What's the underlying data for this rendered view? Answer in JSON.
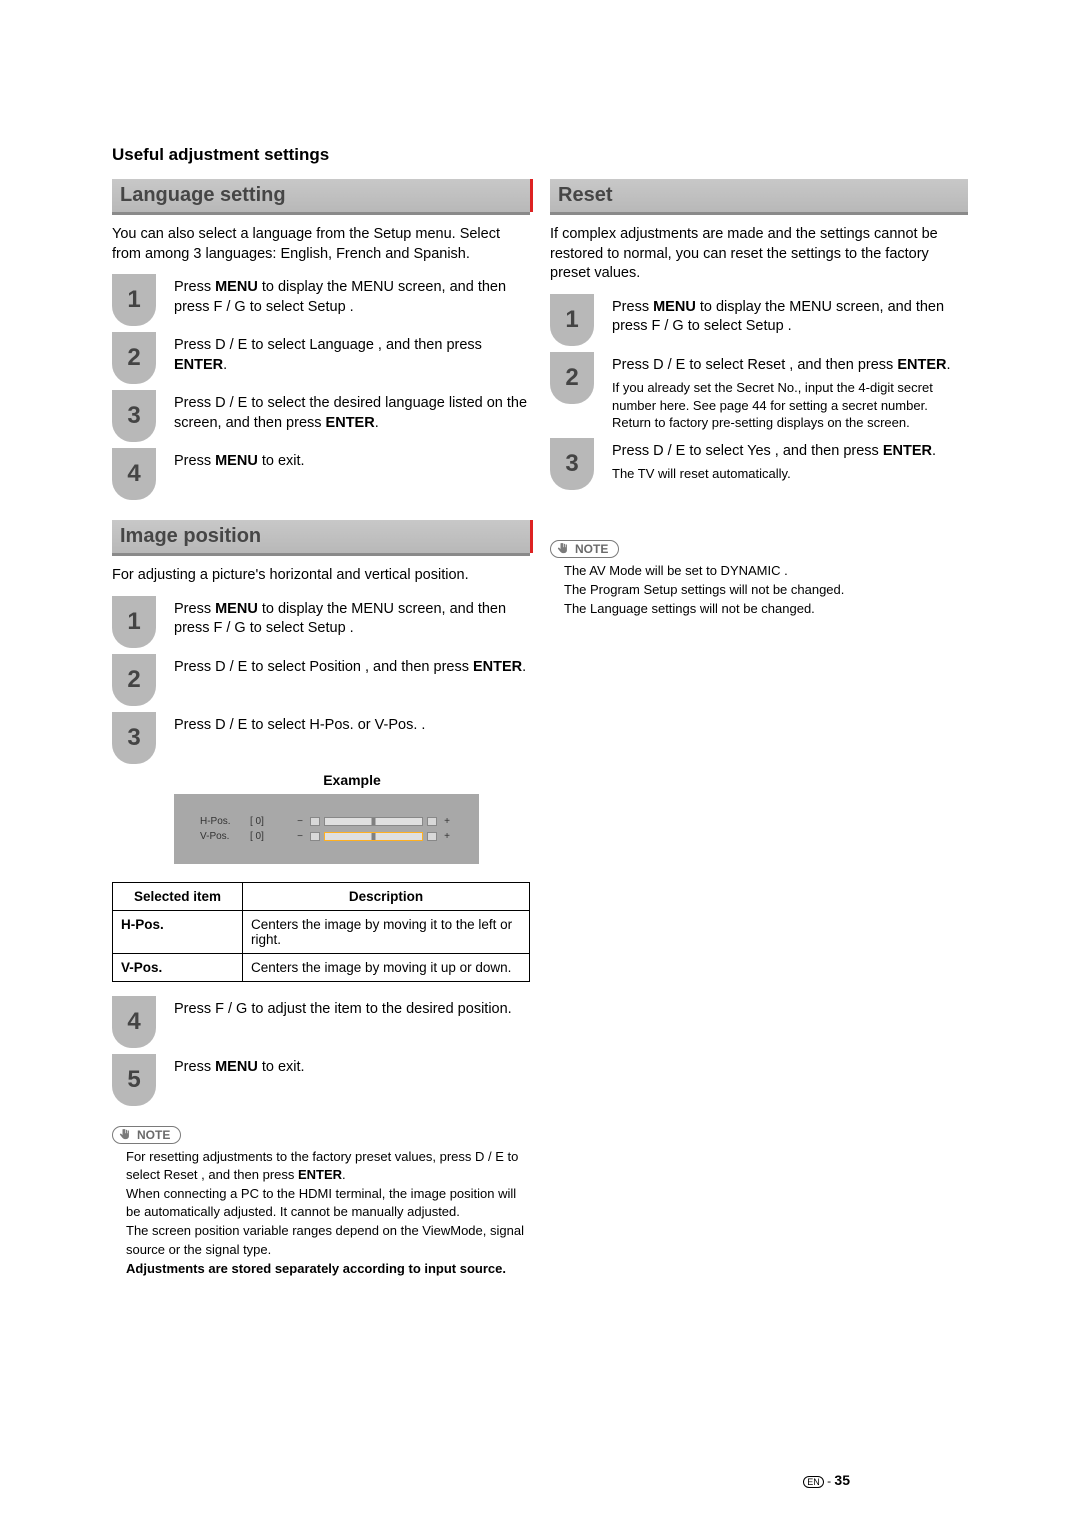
{
  "page_title": "Useful adjustment settings",
  "left": {
    "lang_header": "Language setting",
    "lang_intro": "You can also select a language from the Setup menu. Select from among 3 languages: English, French and Spanish.",
    "lang_steps": [
      "Press <b>MENU</b> to display the MENU screen, and then press  F /  G  to select  Setup .",
      "Press  D /  E  to select  Language , and then press <b>ENTER</b>.",
      "Press  D /  E  to select the desired language listed on the screen, and then press <b>ENTER</b>.",
      "Press <b>MENU</b> to exit."
    ],
    "img_header": "Image position",
    "img_intro": "For adjusting a picture's horizontal and vertical position.",
    "img_steps": [
      "Press <b>MENU</b> to display the MENU screen, and then press  F /  G  to select  Setup .",
      "Press  D /  E  to select  Position , and then press <b>ENTER</b>.",
      "Press  D /  E  to select  H-Pos.  or  V-Pos. ."
    ],
    "example_label": "Example",
    "sliders": [
      {
        "name": "H-Pos.",
        "value": "[     0]"
      },
      {
        "name": "V-Pos.",
        "value": "[     0]"
      }
    ],
    "table": {
      "head": [
        "Selected item",
        "Description"
      ],
      "rows": [
        [
          "H-Pos.",
          "Centers the image by moving it to the left or right."
        ],
        [
          "V-Pos.",
          "Centers the image by moving it up or down."
        ]
      ]
    },
    "img_steps2": [
      "Press  F /  G  to adjust the item to the desired position.",
      "Press <b>MENU</b> to exit."
    ],
    "note_label": "NOTE",
    "notes": [
      "For resetting adjustments to the factory preset values, press  D /  E  to select  Reset , and then press <b>ENTER</b>.",
      "When connecting a PC to the HDMI terminal, the image position will be automatically adjusted. It cannot be manually adjusted.",
      "The screen position variable ranges depend on the ViewMode, signal source or the signal type.",
      "<b>Adjustments are stored separately according to input source.</b>"
    ]
  },
  "right": {
    "reset_header": "Reset",
    "reset_intro": "If complex adjustments are made and the settings cannot be restored to normal, you can reset the settings to the factory preset values.",
    "reset_steps": [
      {
        "main": "Press <b>MENU</b> to display the MENU screen, and then press  F /  G  to select  Setup ."
      },
      {
        "main": "Press  D /  E  to select  Reset , and then press <b>ENTER</b>.",
        "sub": "If you already set the Secret No., input the 4-digit secret number here. See page 44 for setting a secret number.\nReturn to factory pre-setting  displays on the screen."
      },
      {
        "main": "Press  D /  E  to select  Yes , and then press <b>ENTER</b>.",
        "sub": "The TV will reset automatically."
      }
    ],
    "note_label": "NOTE",
    "notes": [
      "The AV Mode will be set to  DYNAMIC .",
      "The Program Setup settings will not be changed.",
      "The Language settings will not be changed."
    ]
  },
  "page_number": {
    "lang": "EN",
    "sep": "-",
    "num": "35"
  }
}
